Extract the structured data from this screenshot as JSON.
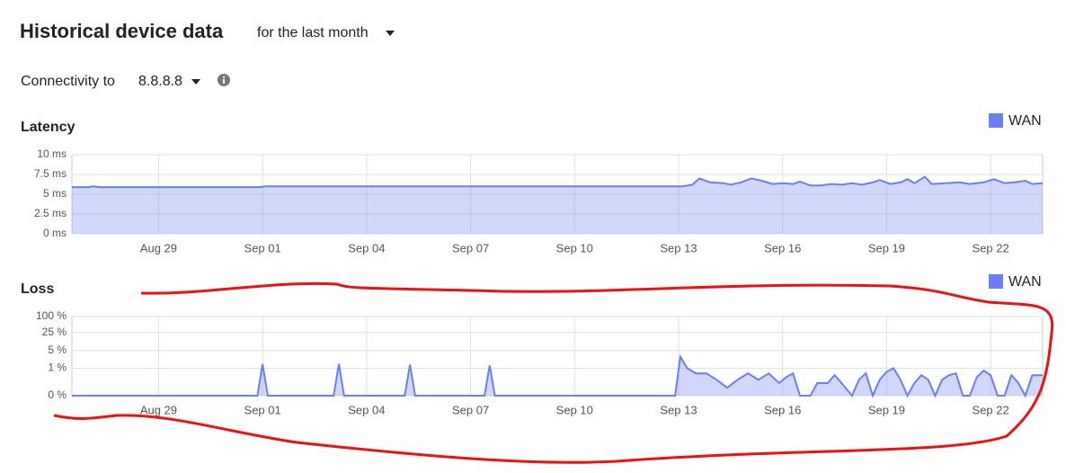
{
  "header": {
    "title": "Historical device data",
    "period": "for the last month",
    "connectivity_label": "Connectivity to",
    "target": "8.8.8.8"
  },
  "chart_data": [
    {
      "type": "area",
      "title": "Latency",
      "legend": "top-right",
      "grid": true,
      "x": [
        0,
        0.5,
        0.6,
        0.8,
        5.4,
        5.6,
        17.4,
        17.6,
        17.9,
        18.1,
        18.4,
        18.8,
        19.0,
        19.3,
        19.6,
        19.9,
        20.2,
        20.5,
        20.8,
        21.0,
        21.3,
        21.6,
        21.9,
        22.2,
        22.5,
        22.8,
        23.1,
        23.3,
        23.6,
        23.9,
        24.1,
        24.3,
        24.6,
        24.8,
        25.2,
        25.6,
        25.9,
        26.3,
        26.6,
        26.9,
        27.2,
        27.5,
        27.7,
        28
      ],
      "series": [
        {
          "name": "WAN",
          "color": "#6b7ff5",
          "values": [
            5.9,
            5.9,
            6.0,
            5.9,
            5.9,
            6.0,
            6.0,
            6.0,
            6.2,
            7.0,
            6.5,
            6.4,
            6.2,
            6.5,
            7.0,
            6.7,
            6.3,
            6.4,
            6.3,
            6.6,
            6.1,
            6.1,
            6.3,
            6.2,
            6.4,
            6.2,
            6.5,
            6.8,
            6.3,
            6.5,
            6.9,
            6.4,
            7.2,
            6.3,
            6.4,
            6.5,
            6.3,
            6.5,
            6.9,
            6.4,
            6.5,
            6.7,
            6.3,
            6.4
          ]
        }
      ],
      "xlim": [
        0,
        28
      ],
      "xticks": [
        {
          "value": 2.5,
          "label": "Aug 29"
        },
        {
          "value": 5.5,
          "label": "Sep 01"
        },
        {
          "value": 8.5,
          "label": "Sep 04"
        },
        {
          "value": 11.5,
          "label": "Sep 07"
        },
        {
          "value": 14.5,
          "label": "Sep 10"
        },
        {
          "value": 17.5,
          "label": "Sep 13"
        },
        {
          "value": 20.5,
          "label": "Sep 16"
        },
        {
          "value": 23.5,
          "label": "Sep 19"
        },
        {
          "value": 26.5,
          "label": "Sep 22"
        }
      ],
      "ylim": [
        0,
        10
      ],
      "yticks": [
        {
          "value": 0,
          "label": "0 ms"
        },
        {
          "value": 2.5,
          "label": "2.5 ms"
        },
        {
          "value": 5,
          "label": "5 ms"
        },
        {
          "value": 7.5,
          "label": "7.5 ms"
        },
        {
          "value": 10,
          "label": "10 ms"
        }
      ]
    },
    {
      "type": "area",
      "title": "Loss",
      "legend": "top-right",
      "grid": true,
      "yscale": "symlog",
      "linthresh": 0.1,
      "x": [
        0,
        5.35,
        5.5,
        5.65,
        7.55,
        7.7,
        7.85,
        9.6,
        9.75,
        9.9,
        11.9,
        12.05,
        12.2,
        17.4,
        17.55,
        17.75,
        18.0,
        18.3,
        18.6,
        18.9,
        19.2,
        19.5,
        19.8,
        20.1,
        20.4,
        20.6,
        20.8,
        21.0,
        21.3,
        21.5,
        21.8,
        22.0,
        22.2,
        22.5,
        22.7,
        22.9,
        23.1,
        23.3,
        23.5,
        23.7,
        23.9,
        24.1,
        24.3,
        24.5,
        24.7,
        24.9,
        25.1,
        25.3,
        25.5,
        25.7,
        25.9,
        26.1,
        26.3,
        26.5,
        26.7,
        26.9,
        27.1,
        27.3,
        27.5,
        27.7,
        28
      ],
      "series": [
        {
          "name": "WAN",
          "color": "#6b7ff5",
          "values": [
            0,
            0,
            1.5,
            0,
            0,
            1.5,
            0,
            0,
            1.4,
            0,
            0,
            1.3,
            0,
            0,
            2.9,
            1.0,
            0.6,
            0.6,
            0.3,
            0.1,
            0.3,
            0.6,
            0.3,
            0.6,
            0.2,
            0.4,
            0.6,
            0,
            0,
            0.2,
            0.2,
            0.5,
            0.2,
            0,
            0.3,
            0.6,
            0,
            0.3,
            0.7,
            1.0,
            0.3,
            0,
            0.2,
            0.5,
            0.3,
            0,
            0.3,
            0.5,
            0.6,
            0,
            0,
            0.4,
            0.8,
            0.5,
            0,
            0,
            0.5,
            0.2,
            0,
            0.5,
            0.5
          ]
        }
      ],
      "xlim": [
        0,
        28
      ],
      "xticks": [
        {
          "value": 2.5,
          "label": "Aug 29"
        },
        {
          "value": 5.5,
          "label": "Sep 01"
        },
        {
          "value": 8.5,
          "label": "Sep 04"
        },
        {
          "value": 11.5,
          "label": "Sep 07"
        },
        {
          "value": 14.5,
          "label": "Sep 10"
        },
        {
          "value": 17.5,
          "label": "Sep 13"
        },
        {
          "value": 20.5,
          "label": "Sep 16"
        },
        {
          "value": 23.5,
          "label": "Sep 19"
        },
        {
          "value": 26.5,
          "label": "Sep 22"
        }
      ],
      "ylim": [
        0,
        100
      ],
      "yticks": [
        {
          "value": 0,
          "label": "0 %"
        },
        {
          "value": 1,
          "label": "1 %"
        },
        {
          "value": 5,
          "label": "5 %"
        },
        {
          "value": 25,
          "label": "25 %"
        },
        {
          "value": 100,
          "label": "100 %"
        }
      ]
    }
  ]
}
